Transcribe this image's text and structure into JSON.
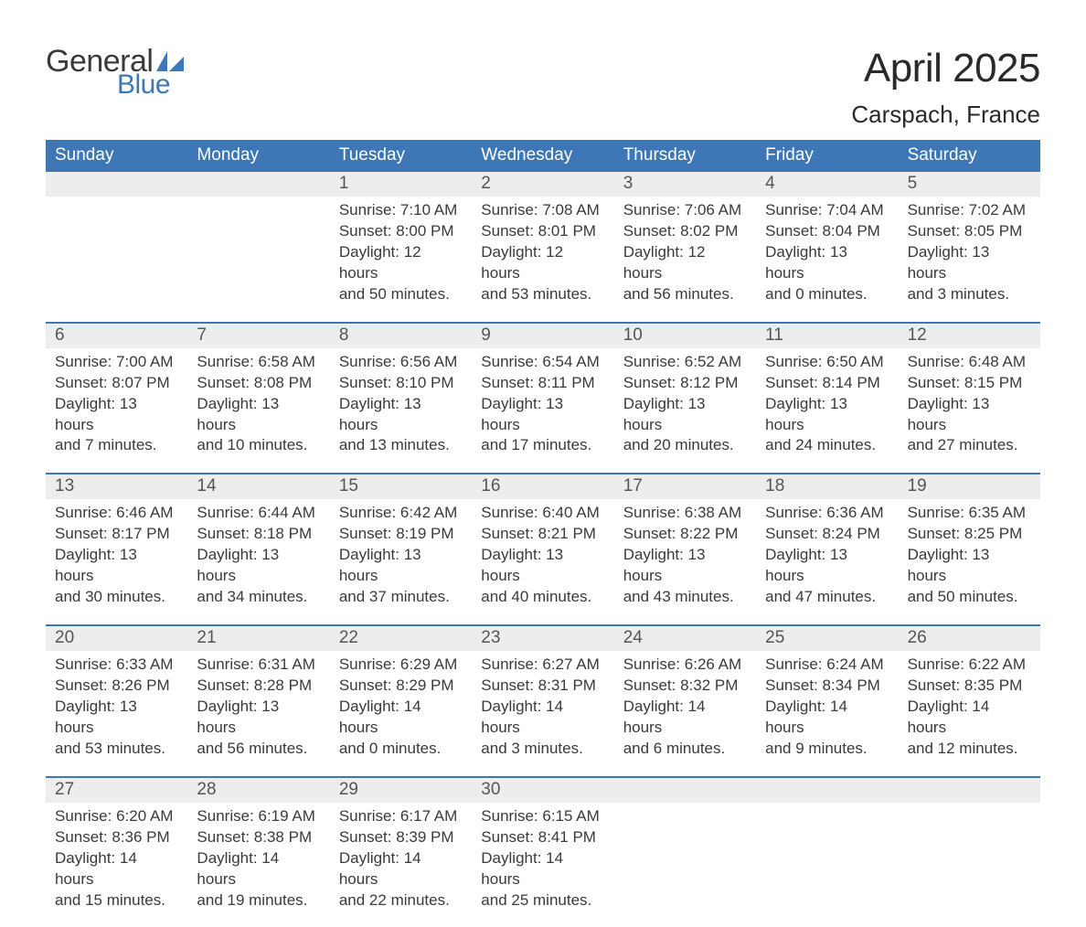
{
  "logo": {
    "text_general": "General",
    "text_blue": "Blue",
    "icon_color": "#3d77b6"
  },
  "title": "April 2025",
  "location": "Carspach, France",
  "colors": {
    "header_bg": "#3d77b6",
    "header_text": "#ffffff",
    "daynum_bg": "#ededed",
    "week_border": "#3d77b6",
    "body_text": "#3a3a3a",
    "background": "#ffffff"
  },
  "weekdays": [
    "Sunday",
    "Monday",
    "Tuesday",
    "Wednesday",
    "Thursday",
    "Friday",
    "Saturday"
  ],
  "weeks": [
    [
      null,
      null,
      {
        "n": "1",
        "sunrise": "Sunrise: 7:10 AM",
        "sunset": "Sunset: 8:00 PM",
        "d1": "Daylight: 12 hours",
        "d2": "and 50 minutes."
      },
      {
        "n": "2",
        "sunrise": "Sunrise: 7:08 AM",
        "sunset": "Sunset: 8:01 PM",
        "d1": "Daylight: 12 hours",
        "d2": "and 53 minutes."
      },
      {
        "n": "3",
        "sunrise": "Sunrise: 7:06 AM",
        "sunset": "Sunset: 8:02 PM",
        "d1": "Daylight: 12 hours",
        "d2": "and 56 minutes."
      },
      {
        "n": "4",
        "sunrise": "Sunrise: 7:04 AM",
        "sunset": "Sunset: 8:04 PM",
        "d1": "Daylight: 13 hours",
        "d2": "and 0 minutes."
      },
      {
        "n": "5",
        "sunrise": "Sunrise: 7:02 AM",
        "sunset": "Sunset: 8:05 PM",
        "d1": "Daylight: 13 hours",
        "d2": "and 3 minutes."
      }
    ],
    [
      {
        "n": "6",
        "sunrise": "Sunrise: 7:00 AM",
        "sunset": "Sunset: 8:07 PM",
        "d1": "Daylight: 13 hours",
        "d2": "and 7 minutes."
      },
      {
        "n": "7",
        "sunrise": "Sunrise: 6:58 AM",
        "sunset": "Sunset: 8:08 PM",
        "d1": "Daylight: 13 hours",
        "d2": "and 10 minutes."
      },
      {
        "n": "8",
        "sunrise": "Sunrise: 6:56 AM",
        "sunset": "Sunset: 8:10 PM",
        "d1": "Daylight: 13 hours",
        "d2": "and 13 minutes."
      },
      {
        "n": "9",
        "sunrise": "Sunrise: 6:54 AM",
        "sunset": "Sunset: 8:11 PM",
        "d1": "Daylight: 13 hours",
        "d2": "and 17 minutes."
      },
      {
        "n": "10",
        "sunrise": "Sunrise: 6:52 AM",
        "sunset": "Sunset: 8:12 PM",
        "d1": "Daylight: 13 hours",
        "d2": "and 20 minutes."
      },
      {
        "n": "11",
        "sunrise": "Sunrise: 6:50 AM",
        "sunset": "Sunset: 8:14 PM",
        "d1": "Daylight: 13 hours",
        "d2": "and 24 minutes."
      },
      {
        "n": "12",
        "sunrise": "Sunrise: 6:48 AM",
        "sunset": "Sunset: 8:15 PM",
        "d1": "Daylight: 13 hours",
        "d2": "and 27 minutes."
      }
    ],
    [
      {
        "n": "13",
        "sunrise": "Sunrise: 6:46 AM",
        "sunset": "Sunset: 8:17 PM",
        "d1": "Daylight: 13 hours",
        "d2": "and 30 minutes."
      },
      {
        "n": "14",
        "sunrise": "Sunrise: 6:44 AM",
        "sunset": "Sunset: 8:18 PM",
        "d1": "Daylight: 13 hours",
        "d2": "and 34 minutes."
      },
      {
        "n": "15",
        "sunrise": "Sunrise: 6:42 AM",
        "sunset": "Sunset: 8:19 PM",
        "d1": "Daylight: 13 hours",
        "d2": "and 37 minutes."
      },
      {
        "n": "16",
        "sunrise": "Sunrise: 6:40 AM",
        "sunset": "Sunset: 8:21 PM",
        "d1": "Daylight: 13 hours",
        "d2": "and 40 minutes."
      },
      {
        "n": "17",
        "sunrise": "Sunrise: 6:38 AM",
        "sunset": "Sunset: 8:22 PM",
        "d1": "Daylight: 13 hours",
        "d2": "and 43 minutes."
      },
      {
        "n": "18",
        "sunrise": "Sunrise: 6:36 AM",
        "sunset": "Sunset: 8:24 PM",
        "d1": "Daylight: 13 hours",
        "d2": "and 47 minutes."
      },
      {
        "n": "19",
        "sunrise": "Sunrise: 6:35 AM",
        "sunset": "Sunset: 8:25 PM",
        "d1": "Daylight: 13 hours",
        "d2": "and 50 minutes."
      }
    ],
    [
      {
        "n": "20",
        "sunrise": "Sunrise: 6:33 AM",
        "sunset": "Sunset: 8:26 PM",
        "d1": "Daylight: 13 hours",
        "d2": "and 53 minutes."
      },
      {
        "n": "21",
        "sunrise": "Sunrise: 6:31 AM",
        "sunset": "Sunset: 8:28 PM",
        "d1": "Daylight: 13 hours",
        "d2": "and 56 minutes."
      },
      {
        "n": "22",
        "sunrise": "Sunrise: 6:29 AM",
        "sunset": "Sunset: 8:29 PM",
        "d1": "Daylight: 14 hours",
        "d2": "and 0 minutes."
      },
      {
        "n": "23",
        "sunrise": "Sunrise: 6:27 AM",
        "sunset": "Sunset: 8:31 PM",
        "d1": "Daylight: 14 hours",
        "d2": "and 3 minutes."
      },
      {
        "n": "24",
        "sunrise": "Sunrise: 6:26 AM",
        "sunset": "Sunset: 8:32 PM",
        "d1": "Daylight: 14 hours",
        "d2": "and 6 minutes."
      },
      {
        "n": "25",
        "sunrise": "Sunrise: 6:24 AM",
        "sunset": "Sunset: 8:34 PM",
        "d1": "Daylight: 14 hours",
        "d2": "and 9 minutes."
      },
      {
        "n": "26",
        "sunrise": "Sunrise: 6:22 AM",
        "sunset": "Sunset: 8:35 PM",
        "d1": "Daylight: 14 hours",
        "d2": "and 12 minutes."
      }
    ],
    [
      {
        "n": "27",
        "sunrise": "Sunrise: 6:20 AM",
        "sunset": "Sunset: 8:36 PM",
        "d1": "Daylight: 14 hours",
        "d2": "and 15 minutes."
      },
      {
        "n": "28",
        "sunrise": "Sunrise: 6:19 AM",
        "sunset": "Sunset: 8:38 PM",
        "d1": "Daylight: 14 hours",
        "d2": "and 19 minutes."
      },
      {
        "n": "29",
        "sunrise": "Sunrise: 6:17 AM",
        "sunset": "Sunset: 8:39 PM",
        "d1": "Daylight: 14 hours",
        "d2": "and 22 minutes."
      },
      {
        "n": "30",
        "sunrise": "Sunrise: 6:15 AM",
        "sunset": "Sunset: 8:41 PM",
        "d1": "Daylight: 14 hours",
        "d2": "and 25 minutes."
      },
      null,
      null,
      null
    ]
  ]
}
